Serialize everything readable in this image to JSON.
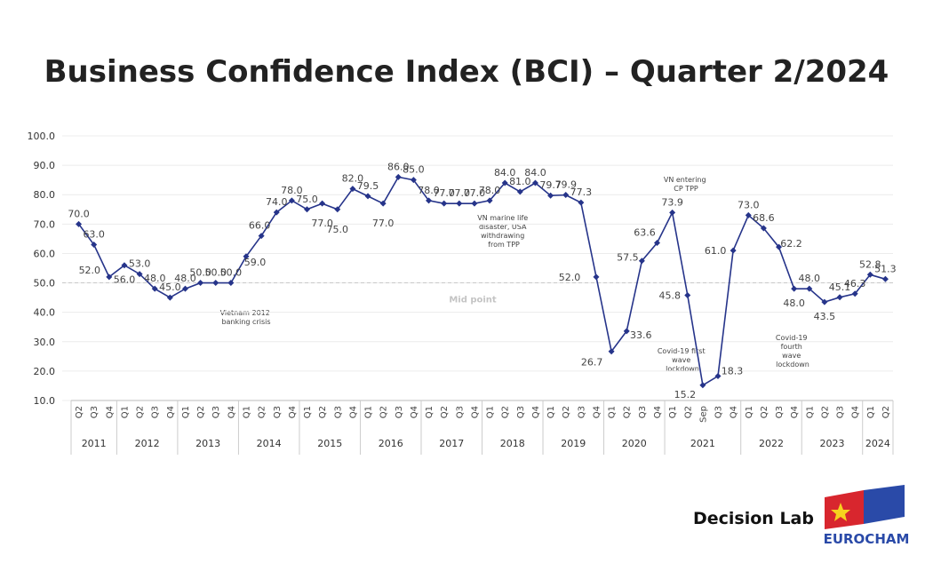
{
  "chart_data": {
    "type": "line",
    "title": "Business Confidence Index (BCI) – Quarter 2/2024",
    "categories": [
      "Q2",
      "Q3",
      "Q4",
      "Q1",
      "Q2",
      "Q3",
      "Q4",
      "Q1",
      "Q2",
      "Q3",
      "Q4",
      "Q1",
      "Q2",
      "Q3",
      "Q4",
      "Q1",
      "Q2",
      "Q3",
      "Q4",
      "Q1",
      "Q2",
      "Q3",
      "Q4",
      "Q1",
      "Q2",
      "Q3",
      "Q4",
      "Q1",
      "Q2",
      "Q3",
      "Q4",
      "Q1",
      "Q2",
      "Q3",
      "Q4",
      "Q1",
      "Q2",
      "Q3",
      "Q4",
      "Q1",
      "Q2",
      "Sep",
      "Q3",
      "Q4",
      "Q1",
      "Q2",
      "Q3",
      "Q4",
      "Q1",
      "Q2",
      "Q3",
      "Q4",
      "Q1",
      "Q2"
    ],
    "groups": [
      {
        "name": "2011",
        "count": 3
      },
      {
        "name": "2012",
        "count": 4
      },
      {
        "name": "2013",
        "count": 4
      },
      {
        "name": "2014",
        "count": 4
      },
      {
        "name": "2015",
        "count": 4
      },
      {
        "name": "2016",
        "count": 4
      },
      {
        "name": "2017",
        "count": 4
      },
      {
        "name": "2018",
        "count": 4
      },
      {
        "name": "2019",
        "count": 4
      },
      {
        "name": "2020",
        "count": 4
      },
      {
        "name": "2021",
        "count": 5
      },
      {
        "name": "2022",
        "count": 4
      },
      {
        "name": "2023",
        "count": 4
      },
      {
        "name": "2024",
        "count": 2
      }
    ],
    "values": [
      70,
      63,
      52,
      56,
      53,
      48,
      45,
      48,
      50,
      50,
      50,
      59,
      66,
      74,
      78,
      75,
      77,
      75,
      82,
      79.5,
      77,
      86,
      85,
      78,
      77,
      77,
      77,
      78,
      84,
      81,
      84,
      79.7,
      79.9,
      77.3,
      52,
      26.7,
      33.6,
      57.5,
      63.6,
      73.9,
      45.8,
      15.2,
      18.3,
      61,
      73,
      68.6,
      62.2,
      48,
      48,
      43.5,
      45.1,
      46.3,
      52.8,
      51.3
    ],
    "value_labels": [
      "70.0",
      "63.0",
      "52.0",
      "56.0",
      "53.0",
      "48.0",
      "45.0",
      "48.0",
      "50.0",
      "50.0",
      "50.0",
      "59.0",
      "66.0",
      "74.0",
      "78.0",
      "75.0",
      "77.0",
      "75.0",
      "82.0",
      "79.5",
      "77.0",
      "86.0",
      "85.0",
      "78.0",
      "77.0",
      "77.0",
      "77.0",
      "78.0",
      "84.0",
      "81.0",
      "84.0",
      "79.7",
      "79.9",
      "77.3",
      "52.0",
      "26.7",
      "33.6",
      "57.5",
      "63.6",
      "73.9",
      "45.8",
      "15.2",
      "18.3",
      "61.0",
      "73.0",
      "68.6",
      "62.2",
      "48.0",
      "48.0",
      "43.5",
      "45.1",
      "46.3",
      "52.8",
      "51.3"
    ],
    "color": "#26348a",
    "ylim": [
      10,
      100
    ],
    "yticks": [
      {
        "value": 10,
        "label": "10.0"
      },
      {
        "value": 20,
        "label": "20.0"
      },
      {
        "value": 30,
        "label": "30.0"
      },
      {
        "value": 40,
        "label": "40.0"
      },
      {
        "value": 50,
        "label": "50.0"
      },
      {
        "value": 60,
        "label": "60.0"
      },
      {
        "value": 70,
        "label": "70.0"
      },
      {
        "value": 80,
        "label": "80.0"
      },
      {
        "value": 90,
        "label": "90.0"
      },
      {
        "value": 100,
        "label": "100.0"
      }
    ],
    "grid": true,
    "midpoint": {
      "value": 50,
      "label": "Mid point"
    },
    "annotations": [
      {
        "lines": [
          "Vietnam 2012",
          "banking crisis"
        ]
      },
      {
        "lines": [
          "VN marine life",
          "disaster, USA",
          "withdrawing",
          "from TPP"
        ]
      },
      {
        "lines": [
          "VN entering",
          "CP TPP"
        ]
      },
      {
        "lines": [
          "Covid-19 first",
          "wave",
          "lockdown"
        ]
      },
      {
        "lines": [
          "Covid-19",
          "fourth",
          "wave",
          "lockdown"
        ]
      }
    ]
  },
  "footer": {
    "brand": "Decision Lab",
    "logo": "EUROCHAM"
  }
}
